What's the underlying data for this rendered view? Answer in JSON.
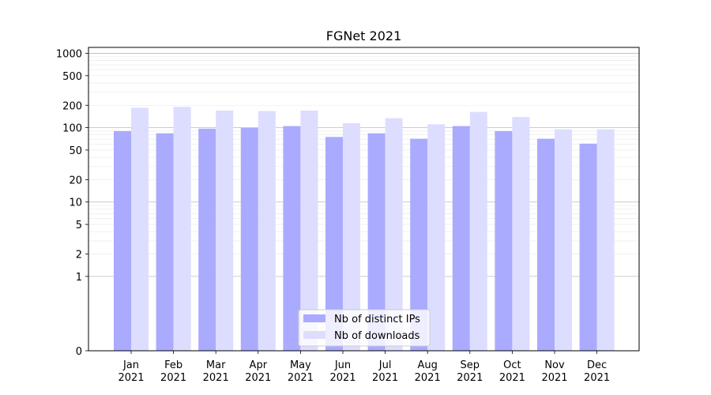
{
  "chart_data": {
    "type": "bar",
    "title": "FGNet 2021",
    "xlabel": "",
    "ylabel": "",
    "yscale": "symlog",
    "ylim": [
      0,
      1200
    ],
    "grid": true,
    "legend_position": "bottom-center",
    "categories": [
      [
        "Jan",
        "2021"
      ],
      [
        "Feb",
        "2021"
      ],
      [
        "Mar",
        "2021"
      ],
      [
        "Apr",
        "2021"
      ],
      [
        "May",
        "2021"
      ],
      [
        "Jun",
        "2021"
      ],
      [
        "Jul",
        "2021"
      ],
      [
        "Aug",
        "2021"
      ],
      [
        "Sep",
        "2021"
      ],
      [
        "Oct",
        "2021"
      ],
      [
        "Nov",
        "2021"
      ],
      [
        "Dec",
        "2021"
      ]
    ],
    "yticks": [
      {
        "value": 0,
        "label": "0"
      },
      {
        "value": 1,
        "label": "1"
      },
      {
        "value": 2,
        "label": "2"
      },
      {
        "value": 5,
        "label": "5"
      },
      {
        "value": 10,
        "label": "10"
      },
      {
        "value": 20,
        "label": "20"
      },
      {
        "value": 50,
        "label": "50"
      },
      {
        "value": 100,
        "label": "100"
      },
      {
        "value": 200,
        "label": "200"
      },
      {
        "value": 500,
        "label": "500"
      },
      {
        "value": 1000,
        "label": "1000"
      }
    ],
    "series": [
      {
        "name": "Nb of distinct IPs",
        "color": "#aaaaff",
        "values": [
          90,
          84,
          97,
          99,
          105,
          75,
          84,
          71,
          105,
          90,
          71,
          61
        ]
      },
      {
        "name": "Nb of downloads",
        "color": "#ddddff",
        "values": [
          185,
          190,
          170,
          167,
          170,
          115,
          134,
          111,
          163,
          139,
          95,
          95
        ]
      }
    ]
  }
}
